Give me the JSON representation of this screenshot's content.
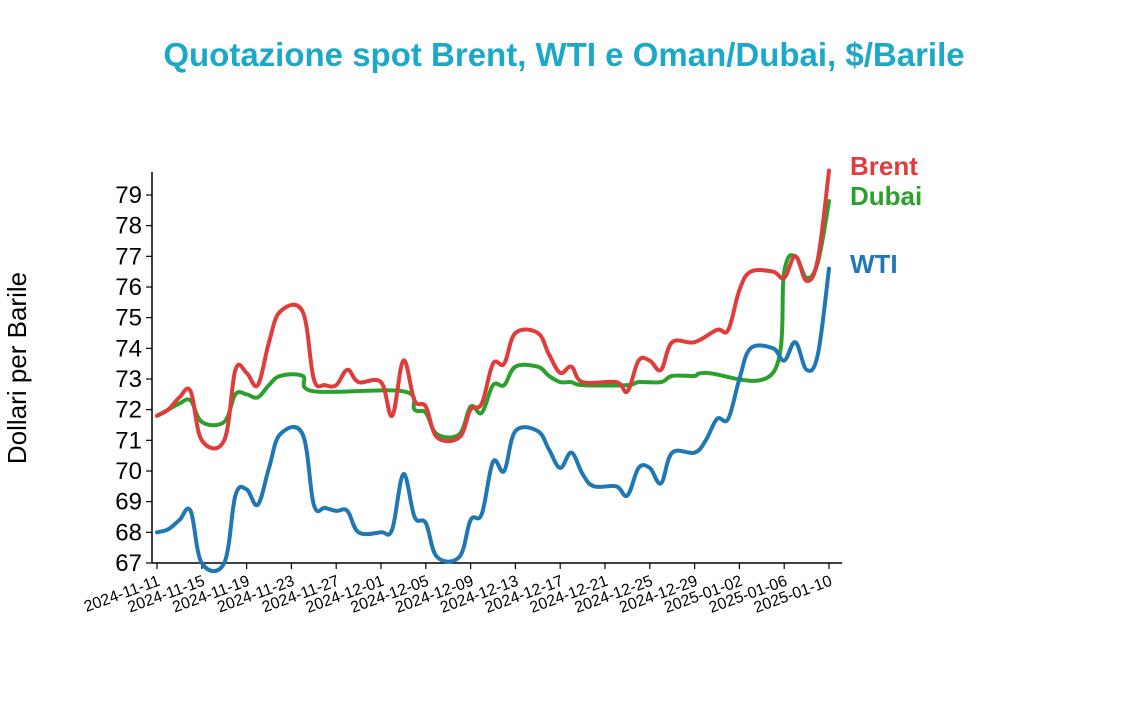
{
  "chart_data": {
    "type": "line",
    "title": "Quotazione spot Brent, WTI e Oman/Dubai, $/Barile",
    "ylabel": "Dollari per Barile",
    "xlabel": "",
    "ylim": [
      67,
      79.8
    ],
    "yticks": [
      67,
      68,
      69,
      70,
      71,
      72,
      73,
      74,
      75,
      76,
      77,
      78,
      79
    ],
    "xlim": [
      "2024-11-11",
      "2025-01-10"
    ],
    "xticks": [
      "2024-11-11",
      "2024-11-15",
      "2024-11-19",
      "2024-11-23",
      "2024-11-27",
      "2024-12-01",
      "2024-12-05",
      "2024-12-09",
      "2024-12-13",
      "2024-12-17",
      "2024-12-21",
      "2024-12-25",
      "2024-12-29",
      "2025-01-02",
      "2025-01-06",
      "2025-01-10"
    ],
    "grid": false,
    "legend": "end-of-line labels",
    "series": [
      {
        "name": "Brent",
        "color": "#e03c3c",
        "points": [
          [
            "2024-11-11",
            71.8
          ],
          [
            "2024-11-12",
            72.0
          ],
          [
            "2024-11-13",
            72.4
          ],
          [
            "2024-11-14",
            72.6
          ],
          [
            "2024-11-15",
            71.0
          ],
          [
            "2024-11-17",
            71.0
          ],
          [
            "2024-11-18",
            73.3
          ],
          [
            "2024-11-19",
            73.2
          ],
          [
            "2024-11-20",
            72.8
          ],
          [
            "2024-11-21",
            74.2
          ],
          [
            "2024-11-22",
            75.2
          ],
          [
            "2024-11-24",
            75.2
          ],
          [
            "2024-11-25",
            73.0
          ],
          [
            "2024-11-26",
            72.8
          ],
          [
            "2024-11-27",
            72.8
          ],
          [
            "2024-11-28",
            73.3
          ],
          [
            "2024-11-29",
            72.9
          ],
          [
            "2024-12-01",
            72.9
          ],
          [
            "2024-12-02",
            71.8
          ],
          [
            "2024-12-03",
            73.6
          ],
          [
            "2024-12-04",
            72.3
          ],
          [
            "2024-12-05",
            72.1
          ],
          [
            "2024-12-06",
            71.1
          ],
          [
            "2024-12-08",
            71.1
          ],
          [
            "2024-12-09",
            72.0
          ],
          [
            "2024-12-10",
            72.2
          ],
          [
            "2024-12-11",
            73.5
          ],
          [
            "2024-12-12",
            73.5
          ],
          [
            "2024-12-13",
            74.5
          ],
          [
            "2024-12-15",
            74.5
          ],
          [
            "2024-12-16",
            73.8
          ],
          [
            "2024-12-17",
            73.2
          ],
          [
            "2024-12-18",
            73.4
          ],
          [
            "2024-12-19",
            72.9
          ],
          [
            "2024-12-22",
            72.9
          ],
          [
            "2024-12-23",
            72.6
          ],
          [
            "2024-12-24",
            73.6
          ],
          [
            "2024-12-25",
            73.6
          ],
          [
            "2024-12-26",
            73.3
          ],
          [
            "2024-12-27",
            74.2
          ],
          [
            "2024-12-29",
            74.2
          ],
          [
            "2024-12-31",
            74.6
          ],
          [
            "2025-01-01",
            74.6
          ],
          [
            "2025-01-02",
            75.9
          ],
          [
            "2025-01-03",
            76.5
          ],
          [
            "2025-01-05",
            76.5
          ],
          [
            "2025-01-06",
            76.3
          ],
          [
            "2025-01-07",
            77.0
          ],
          [
            "2025-01-08",
            76.2
          ],
          [
            "2025-01-09",
            76.9
          ],
          [
            "2025-01-10",
            79.8
          ]
        ]
      },
      {
        "name": "Dubai",
        "color": "#2ca02c",
        "points": [
          [
            "2024-11-11",
            71.8
          ],
          [
            "2024-11-12",
            72.0
          ],
          [
            "2024-11-13",
            72.2
          ],
          [
            "2024-11-14",
            72.3
          ],
          [
            "2024-11-15",
            71.6
          ],
          [
            "2024-11-17",
            71.6
          ],
          [
            "2024-11-18",
            72.5
          ],
          [
            "2024-11-19",
            72.5
          ],
          [
            "2024-11-20",
            72.4
          ],
          [
            "2024-11-21",
            72.8
          ],
          [
            "2024-11-22",
            73.1
          ],
          [
            "2024-11-24",
            73.1
          ],
          [
            "2024-11-25",
            72.6
          ],
          [
            "2024-12-03",
            72.6
          ],
          [
            "2024-12-04",
            72.0
          ],
          [
            "2024-12-05",
            71.9
          ],
          [
            "2024-12-06",
            71.2
          ],
          [
            "2024-12-08",
            71.2
          ],
          [
            "2024-12-09",
            72.1
          ],
          [
            "2024-12-10",
            71.9
          ],
          [
            "2024-12-11",
            72.8
          ],
          [
            "2024-12-12",
            72.8
          ],
          [
            "2024-12-13",
            73.4
          ],
          [
            "2024-12-15",
            73.4
          ],
          [
            "2024-12-16",
            73.1
          ],
          [
            "2024-12-17",
            72.9
          ],
          [
            "2024-12-18",
            72.9
          ],
          [
            "2024-12-19",
            72.8
          ],
          [
            "2024-12-23",
            72.8
          ],
          [
            "2024-12-24",
            72.9
          ],
          [
            "2024-12-26",
            72.9
          ],
          [
            "2024-12-27",
            73.1
          ],
          [
            "2024-12-29",
            73.1
          ],
          [
            "2024-12-30",
            73.2
          ],
          [
            "2025-01-05",
            73.2
          ],
          [
            "2025-01-06",
            76.5
          ],
          [
            "2025-01-07",
            77.0
          ],
          [
            "2025-01-08",
            76.3
          ],
          [
            "2025-01-09",
            76.8
          ],
          [
            "2025-01-10",
            78.8
          ]
        ]
      },
      {
        "name": "WTI",
        "color": "#1f77b4",
        "points": [
          [
            "2024-11-11",
            68.0
          ],
          [
            "2024-11-12",
            68.1
          ],
          [
            "2024-11-13",
            68.4
          ],
          [
            "2024-11-14",
            68.7
          ],
          [
            "2024-11-15",
            67.0
          ],
          [
            "2024-11-17",
            67.0
          ],
          [
            "2024-11-18",
            69.2
          ],
          [
            "2024-11-19",
            69.4
          ],
          [
            "2024-11-20",
            68.9
          ],
          [
            "2024-11-21",
            70.1
          ],
          [
            "2024-11-22",
            71.2
          ],
          [
            "2024-11-24",
            71.2
          ],
          [
            "2024-11-25",
            68.9
          ],
          [
            "2024-11-26",
            68.8
          ],
          [
            "2024-11-27",
            68.7
          ],
          [
            "2024-11-28",
            68.7
          ],
          [
            "2024-11-29",
            68.0
          ],
          [
            "2024-12-01",
            68.0
          ],
          [
            "2024-12-02",
            68.1
          ],
          [
            "2024-12-03",
            69.9
          ],
          [
            "2024-12-04",
            68.5
          ],
          [
            "2024-12-05",
            68.3
          ],
          [
            "2024-12-06",
            67.2
          ],
          [
            "2024-12-08",
            67.2
          ],
          [
            "2024-12-09",
            68.4
          ],
          [
            "2024-12-10",
            68.6
          ],
          [
            "2024-12-11",
            70.3
          ],
          [
            "2024-12-12",
            70.0
          ],
          [
            "2024-12-13",
            71.3
          ],
          [
            "2024-12-15",
            71.3
          ],
          [
            "2024-12-16",
            70.7
          ],
          [
            "2024-12-17",
            70.1
          ],
          [
            "2024-12-18",
            70.6
          ],
          [
            "2024-12-19",
            69.9
          ],
          [
            "2024-12-20",
            69.5
          ],
          [
            "2024-12-22",
            69.5
          ],
          [
            "2024-12-23",
            69.2
          ],
          [
            "2024-12-24",
            70.1
          ],
          [
            "2024-12-25",
            70.1
          ],
          [
            "2024-12-26",
            69.6
          ],
          [
            "2024-12-27",
            70.6
          ],
          [
            "2024-12-29",
            70.6
          ],
          [
            "2024-12-30",
            71.0
          ],
          [
            "2024-12-31",
            71.7
          ],
          [
            "2025-01-01",
            71.7
          ],
          [
            "2025-01-02",
            73.0
          ],
          [
            "2025-01-03",
            74.0
          ],
          [
            "2025-01-05",
            74.0
          ],
          [
            "2025-01-06",
            73.6
          ],
          [
            "2025-01-07",
            74.2
          ],
          [
            "2025-01-08",
            73.3
          ],
          [
            "2025-01-09",
            73.8
          ],
          [
            "2025-01-10",
            76.6
          ]
        ]
      }
    ]
  }
}
